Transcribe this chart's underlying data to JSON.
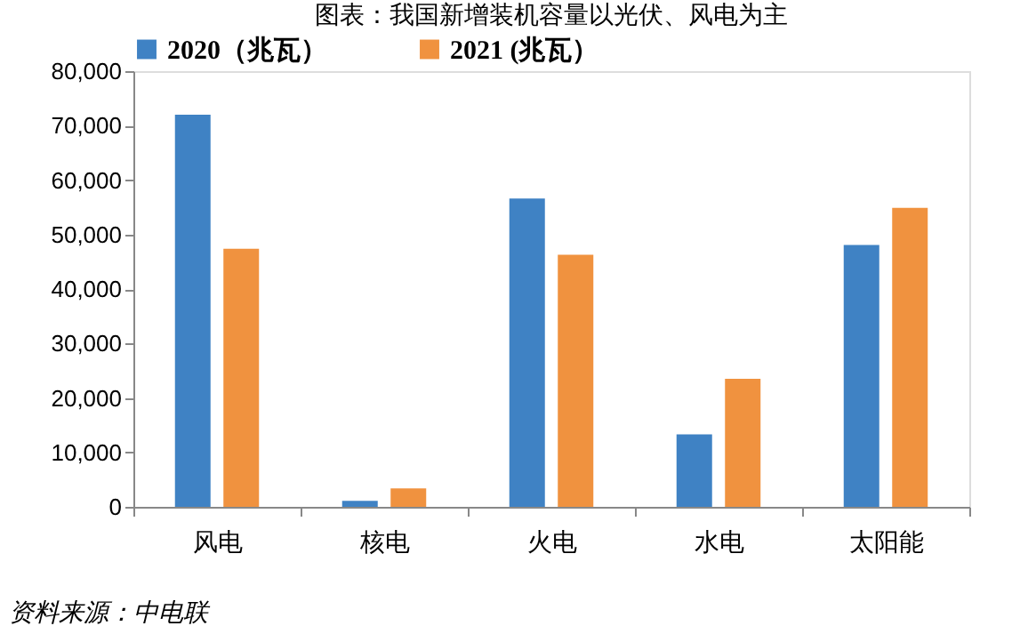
{
  "chart_data": {
    "type": "bar",
    "title": "图表：我国新增装机容量以光伏、风电为主",
    "categories": [
      "风电",
      "核电",
      "火电",
      "水电",
      "太阳能"
    ],
    "series": [
      {
        "name": "2020（兆瓦）",
        "color": "#3f82c4",
        "values": [
          72000,
          1100,
          56600,
          13300,
          48100
        ]
      },
      {
        "name": "2021 (兆瓦）",
        "color": "#f0923f",
        "values": [
          47400,
          3400,
          46300,
          23500,
          54900
        ]
      }
    ],
    "ylim": [
      0,
      80000
    ],
    "yticks": [
      0,
      {
        "value": 10000,
        "label": "10,000"
      },
      {
        "value": 20000,
        "label": "20,000"
      },
      {
        "value": 30000,
        "label": "30,000"
      },
      {
        "value": 40000,
        "label": "40,000"
      },
      {
        "value": 50000,
        "label": "50,000"
      },
      {
        "value": 60000,
        "label": "60,000"
      },
      {
        "value": 70000,
        "label": "70,000"
      },
      {
        "value": 80000,
        "label": "80,000"
      }
    ],
    "grid": false,
    "legend": "top",
    "annotations": [
      "资料来源：中电联"
    ]
  }
}
